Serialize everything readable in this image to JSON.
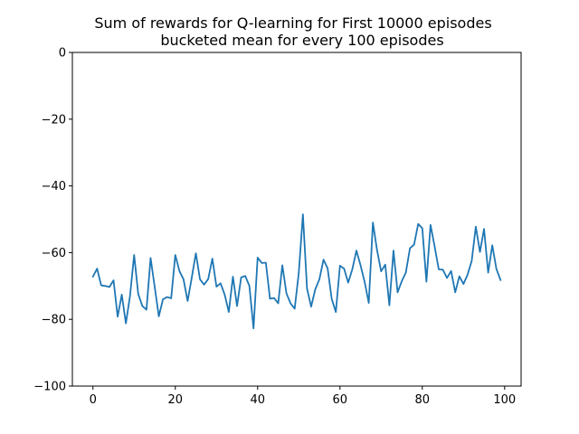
{
  "chart_data": {
    "type": "line",
    "title": [
      "Sum of rewards for Q-learning for First 10000 episodes",
      "bucketed mean for every 100 episodes"
    ],
    "xlabel": "",
    "ylabel": "",
    "xlim": [
      -5,
      104
    ],
    "ylim": [
      -100,
      0
    ],
    "xticks": [
      0,
      20,
      40,
      60,
      80,
      100
    ],
    "yticks": [
      0,
      -20,
      -40,
      -60,
      -80,
      -100
    ],
    "xtick_labels": [
      "0",
      "20",
      "40",
      "60",
      "80",
      "100"
    ],
    "ytick_labels": [
      "0",
      "−20",
      "−40",
      "−60",
      "−80",
      "−100"
    ],
    "grid": false,
    "series": [
      {
        "color": "#1f77b4",
        "x": [
          0,
          1,
          2,
          3,
          4,
          5,
          6,
          7,
          8,
          9,
          10,
          11,
          12,
          13,
          14,
          15,
          16,
          17,
          18,
          19,
          20,
          21,
          22,
          23,
          24,
          25,
          26,
          27,
          28,
          29,
          30,
          31,
          32,
          33,
          34,
          35,
          36,
          37,
          38,
          39,
          40,
          41,
          42,
          43,
          44,
          45,
          46,
          47,
          48,
          49,
          50,
          51,
          52,
          53,
          54,
          55,
          56,
          57,
          58,
          59,
          60,
          61,
          62,
          63,
          64,
          65,
          66,
          67,
          68,
          69,
          70,
          71,
          72,
          73,
          74,
          75,
          76,
          77,
          78,
          79,
          80,
          81,
          82,
          83,
          84,
          85,
          86,
          87,
          88,
          89,
          90,
          91,
          92,
          93,
          94,
          95,
          96,
          97,
          98,
          99
        ],
        "values": [
          -67.2,
          -64.8,
          -69.8,
          -70,
          -70.3,
          -68.3,
          -79.2,
          -72.6,
          -81.2,
          -73,
          -60.7,
          -72.4,
          -76,
          -77.1,
          -61.6,
          -70.3,
          -79.1,
          -74,
          -73.3,
          -73.7,
          -60.7,
          -65.5,
          -68,
          -74.5,
          -67.5,
          -60.2,
          -68,
          -69.6,
          -67.9,
          -61.8,
          -70.2,
          -69.2,
          -72.6,
          -77.8,
          -67.2,
          -76,
          -67.4,
          -67,
          -70,
          -82.7,
          -61.5,
          -63.1,
          -63,
          -73.8,
          -73.6,
          -75.2,
          -63.8,
          -72.2,
          -75.2,
          -76.8,
          -66,
          -48.5,
          -70.8,
          -76.2,
          -71,
          -68,
          -62.1,
          -64.7,
          -73.9,
          -77.8,
          -63.9,
          -64.8,
          -69,
          -65,
          -59.4,
          -63.8,
          -68.8,
          -75.1,
          -51,
          -59.2,
          -65.6,
          -63.6,
          -75.8,
          -59.4,
          -71.9,
          -68.6,
          -66,
          -58.7,
          -57.6,
          -51.4,
          -52.7,
          -68.7,
          -51.7,
          -58.2,
          -65,
          -65.1,
          -67.6,
          -65.5,
          -71.9,
          -67.1,
          -69.4,
          -66.6,
          -62.5,
          -52.2,
          -59.8,
          -52.9,
          -66,
          -57.8,
          -64.9,
          -68.2
        ]
      }
    ]
  }
}
